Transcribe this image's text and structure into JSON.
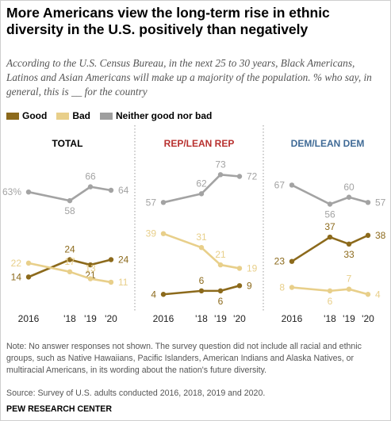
{
  "title": "More Americans view the long-term rise in ethnic diversity in the U.S. positively than negatively",
  "subtitle": "According to the U.S. Census Bureau, in the next 25 to 30 years, Black Americans, Latinos and Asian Americans will make up a majority of the population. % who say, in general, this is __  for the country",
  "legend": [
    {
      "label": "Good",
      "color": "#8c6a1c"
    },
    {
      "label": "Bad",
      "color": "#e8cf8a"
    },
    {
      "label": "Neither good nor bad",
      "color": "#9e9e9e"
    }
  ],
  "colors": {
    "good": "#8c6a1c",
    "bad": "#e8cf8a",
    "neither": "#a3a3a3",
    "rep": "#b8312f",
    "dem": "#3f6a96",
    "divider": "#9a9a9a"
  },
  "note": "Note: No answer responses not shown. The survey question did not include all racial and ethnic groups, such as Native Hawaiians, Pacific Islanders, American Indians and Alaska Natives, or multiracial Americans, in its wording about the nation's future diversity.",
  "source": "Source: Survey of U.S. adults conducted 2016, 2018, 2019 and 2020.",
  "org": "PEW RESEARCH CENTER",
  "chart_data": [
    {
      "type": "line",
      "title": "TOTAL",
      "x": [
        2016,
        2018,
        2019,
        2020
      ],
      "tick_labels": [
        "2016",
        "'18",
        "'19",
        "'20"
      ],
      "series": [
        {
          "name": "Neither good nor bad",
          "values": [
            63,
            58,
            66,
            64
          ],
          "labels": [
            "63%",
            "58",
            "66",
            "64"
          ]
        },
        {
          "name": "Good",
          "values": [
            14,
            24,
            21,
            24
          ],
          "labels": [
            "14",
            "24",
            "21",
            "24"
          ]
        },
        {
          "name": "Bad",
          "values": [
            22,
            17,
            13,
            11
          ],
          "labels": [
            "22",
            "17",
            "13",
            "11"
          ]
        }
      ]
    },
    {
      "type": "line",
      "title": "REP/LEAN REP",
      "x": [
        2016,
        2018,
        2019,
        2020
      ],
      "tick_labels": [
        "2016",
        "'18",
        "'19",
        "'20"
      ],
      "series": [
        {
          "name": "Neither good nor bad",
          "values": [
            57,
            62,
            73,
            72
          ],
          "labels": [
            "57",
            "62",
            "73",
            "72"
          ]
        },
        {
          "name": "Bad",
          "values": [
            39,
            31,
            21,
            19
          ],
          "labels": [
            "39",
            "31",
            "21",
            "19"
          ]
        },
        {
          "name": "Good",
          "values": [
            4,
            6,
            6,
            9
          ],
          "labels": [
            "4",
            "6",
            "6",
            "9"
          ]
        }
      ]
    },
    {
      "type": "line",
      "title": "DEM/LEAN DEM",
      "x": [
        2016,
        2018,
        2019,
        2020
      ],
      "tick_labels": [
        "2016",
        "'18",
        "'19",
        "'20"
      ],
      "series": [
        {
          "name": "Neither good nor bad",
          "values": [
            67,
            56,
            60,
            57
          ],
          "labels": [
            "67",
            "56",
            "60",
            "57"
          ]
        },
        {
          "name": "Good",
          "values": [
            23,
            37,
            33,
            38
          ],
          "labels": [
            "23",
            "37",
            "33",
            "38"
          ]
        },
        {
          "name": "Bad",
          "values": [
            8,
            6,
            7,
            4
          ],
          "labels": [
            "8",
            "6",
            "7",
            "4"
          ]
        }
      ]
    }
  ]
}
